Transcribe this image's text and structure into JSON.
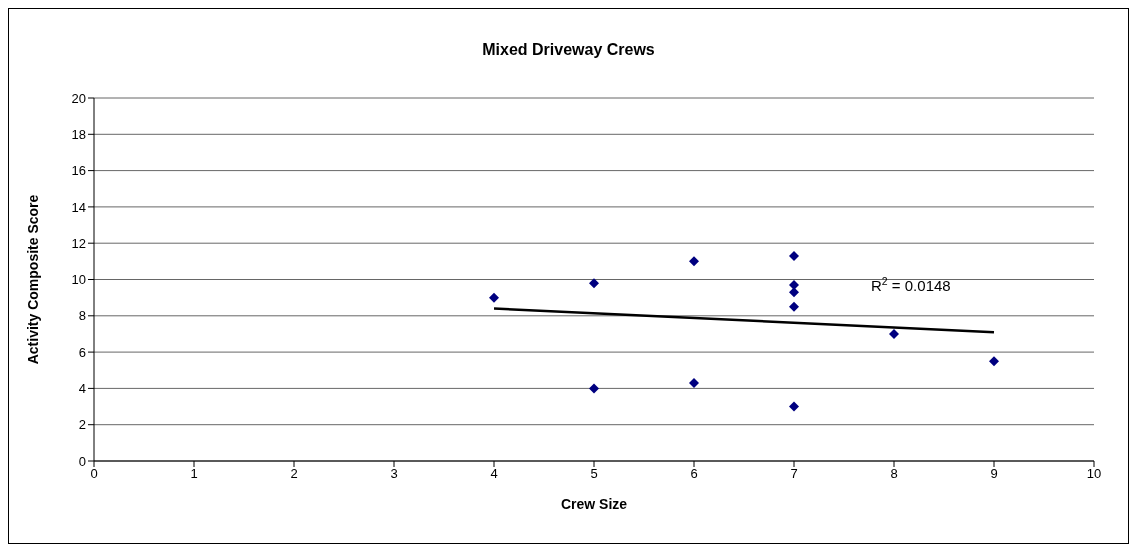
{
  "chart_data": {
    "type": "scatter",
    "title": "Mixed Driveway Crews",
    "xlabel": "Crew Size",
    "ylabel": "Activity Composite Score",
    "series": [
      {
        "color": "#000080",
        "marker": "diamond",
        "x": [
          4,
          5,
          5,
          6,
          6,
          7,
          7,
          7,
          7,
          7,
          8,
          9
        ],
        "values": [
          9,
          9.8,
          4,
          11,
          4.3,
          11.3,
          9.7,
          9.3,
          8.5,
          3,
          7,
          5.5
        ]
      },
      {
        "type": "line",
        "color": "#000000",
        "marker": "none",
        "x": [
          4,
          9
        ],
        "values": [
          8.4,
          7.1
        ]
      }
    ],
    "annotations": [
      "R$^{2}$ = 0.0148"
    ],
    "xlim": [
      0,
      10
    ],
    "xticks": [
      0,
      1,
      2,
      3,
      4,
      5,
      6,
      7,
      8,
      9,
      10
    ],
    "ylim": [
      0,
      20
    ],
    "yticks": [
      0,
      2,
      4,
      6,
      8,
      10,
      12,
      14,
      16,
      18,
      20
    ],
    "grid": "y"
  }
}
